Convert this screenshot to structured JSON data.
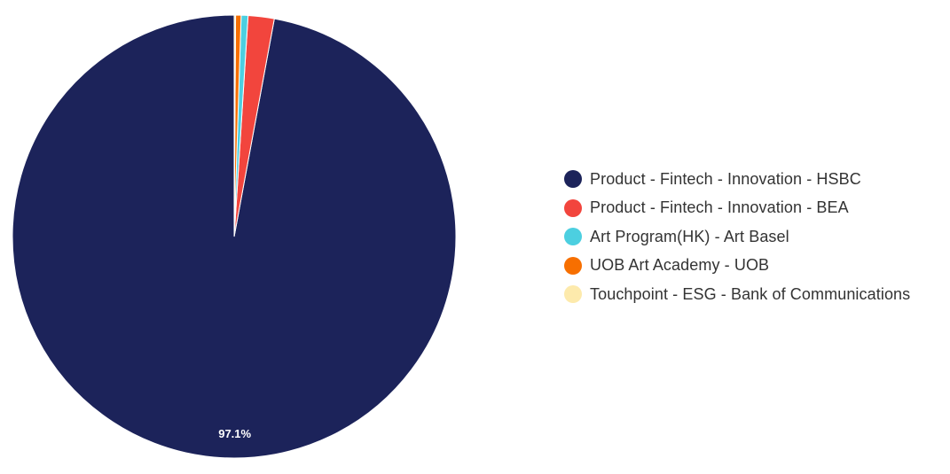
{
  "chart_data": {
    "type": "pie",
    "title": "",
    "categories": [
      "Product - Fintech - Innovation - HSBC",
      "Product - Fintech - Innovation - BEA",
      "Art Program(HK) - Art Basel",
      "UOB Art Academy - UOB",
      "Touchpoint - ESG - Bank of Communications"
    ],
    "values": [
      97.1,
      1.9,
      0.5,
      0.4,
      0.1
    ],
    "colors": [
      "#1c235a",
      "#f2453d",
      "#4ccfe0",
      "#f76f00",
      "#fdeaac"
    ],
    "data_labels": [
      "97.1%",
      "",
      "",
      "",
      ""
    ],
    "legend_position": "right"
  }
}
